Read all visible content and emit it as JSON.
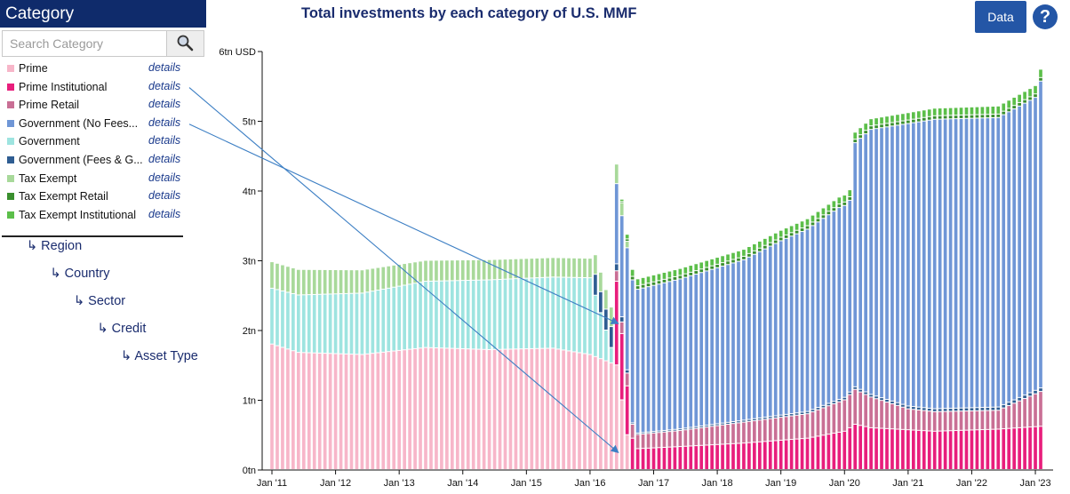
{
  "sidebar": {
    "title": "Category",
    "search_placeholder": "Search Category",
    "details_label": "details",
    "categories": [
      {
        "label": "Prime",
        "color": "#f7b6c9"
      },
      {
        "label": "Prime Institutional",
        "color": "#e81e7c"
      },
      {
        "label": "Prime Retail",
        "color": "#c96f95"
      },
      {
        "label": "Government (No Fees...",
        "color": "#6f96d6"
      },
      {
        "label": "Government",
        "color": "#9ee4e0"
      },
      {
        "label": "Government (Fees & G...",
        "color": "#2f5d92"
      },
      {
        "label": "Tax Exempt",
        "color": "#a8d99a"
      },
      {
        "label": "Tax Exempt Retail",
        "color": "#3a8f2e"
      },
      {
        "label": "Tax Exempt Institutional",
        "color": "#5cbf4a"
      }
    ],
    "hierarchy": [
      "↳ Region",
      "↳ Country",
      "↳ Sector",
      "↳ Credit",
      "↳ Asset Type"
    ]
  },
  "header": {
    "title": "Total investments by each category of U.S. MMF",
    "data_button": "Data",
    "help_icon": "?"
  },
  "chart_data": {
    "type": "bar",
    "stacked": true,
    "title": "Total investments by each category of U.S. MMF",
    "ylabel": "6tn USD",
    "ylim": [
      0,
      6
    ],
    "ytick_labels": [
      "0tn",
      "1tn",
      "2tn",
      "3tn",
      "4tn",
      "5tn",
      "6tn USD"
    ],
    "xtick_labels": [
      "Jan '11",
      "Jan '12",
      "Jan '13",
      "Jan '14",
      "Jan '15",
      "Jan '16",
      "Jan '17",
      "Jan '18",
      "Jan '19",
      "Jan '20",
      "Jan '21",
      "Jan '22",
      "Jan '23"
    ],
    "x_start": "Jan '11",
    "frequency": "monthly",
    "units": "tn USD",
    "series": [
      {
        "name": "Prime",
        "color": "#f7b6c9",
        "keyframes": [
          [
            "2011-01",
            1.8
          ],
          [
            "2011-06",
            1.68
          ],
          [
            "2012-06",
            1.65
          ],
          [
            "2013-06",
            1.75
          ],
          [
            "2014-06",
            1.72
          ],
          [
            "2015-06",
            1.74
          ],
          [
            "2016-01",
            1.65
          ],
          [
            "2016-06",
            1.5
          ],
          [
            "2016-09",
            0
          ],
          [
            "2023-02",
            0
          ]
        ]
      },
      {
        "name": "Prime Institutional",
        "color": "#e81e7c",
        "keyframes": [
          [
            "2011-01",
            0
          ],
          [
            "2016-05",
            0
          ],
          [
            "2016-06",
            1.2
          ],
          [
            "2016-09",
            0.45
          ],
          [
            "2016-10",
            0.3
          ],
          [
            "2017-06",
            0.33
          ],
          [
            "2018-06",
            0.38
          ],
          [
            "2019-06",
            0.45
          ],
          [
            "2020-01",
            0.55
          ],
          [
            "2020-03",
            0.65
          ],
          [
            "2020-06",
            0.6
          ],
          [
            "2021-06",
            0.55
          ],
          [
            "2022-06",
            0.58
          ],
          [
            "2023-02",
            0.62
          ]
        ]
      },
      {
        "name": "Prime Retail",
        "color": "#c96f95",
        "keyframes": [
          [
            "2011-01",
            0
          ],
          [
            "2016-05",
            0
          ],
          [
            "2016-06",
            0.15
          ],
          [
            "2016-09",
            0.2
          ],
          [
            "2017-06",
            0.23
          ],
          [
            "2018-06",
            0.3
          ],
          [
            "2019-06",
            0.35
          ],
          [
            "2020-01",
            0.45
          ],
          [
            "2020-03",
            0.5
          ],
          [
            "2021-01",
            0.3
          ],
          [
            "2021-06",
            0.28
          ],
          [
            "2022-06",
            0.27
          ],
          [
            "2023-02",
            0.5
          ]
        ]
      },
      {
        "name": "Government",
        "color": "#9ee4e0",
        "keyframes": [
          [
            "2011-01",
            0.8
          ],
          [
            "2012-06",
            0.88
          ],
          [
            "2013-06",
            0.95
          ],
          [
            "2014-06",
            1.0
          ],
          [
            "2015-06",
            1.02
          ],
          [
            "2016-01",
            1.1
          ],
          [
            "2016-06",
            0
          ],
          [
            "2023-02",
            0
          ]
        ]
      },
      {
        "name": "Government (Fees & G...",
        "color": "#2f5d92",
        "keyframes": [
          [
            "2011-01",
            0
          ],
          [
            "2016-01",
            0
          ],
          [
            "2016-02",
            0.3
          ],
          [
            "2016-05",
            0.3
          ],
          [
            "2016-06",
            0.1
          ],
          [
            "2016-09",
            0.02
          ],
          [
            "2023-02",
            0.05
          ]
        ]
      },
      {
        "name": "Government (No Fees...",
        "color": "#6f96d6",
        "keyframes": [
          [
            "2011-01",
            0
          ],
          [
            "2016-05",
            0
          ],
          [
            "2016-06",
            1.15
          ],
          [
            "2016-09",
            2.05
          ],
          [
            "2017-06",
            2.15
          ],
          [
            "2018-06",
            2.3
          ],
          [
            "2019-01",
            2.5
          ],
          [
            "2019-12",
            2.75
          ],
          [
            "2020-02",
            2.75
          ],
          [
            "2020-03",
            3.5
          ],
          [
            "2020-06",
            3.8
          ],
          [
            "2021-01",
            4.05
          ],
          [
            "2021-06",
            4.15
          ],
          [
            "2022-01",
            4.15
          ],
          [
            "2022-06",
            4.15
          ],
          [
            "2023-01",
            4.2
          ],
          [
            "2023-02",
            4.4
          ]
        ]
      },
      {
        "name": "Tax Exempt",
        "color": "#a8d99a",
        "keyframes": [
          [
            "2011-01",
            0.38
          ],
          [
            "2013-06",
            0.3
          ],
          [
            "2015-06",
            0.28
          ],
          [
            "2016-06",
            0.28
          ],
          [
            "2016-09",
            0
          ],
          [
            "2023-02",
            0
          ]
        ]
      },
      {
        "name": "Tax Exempt Retail",
        "color": "#3a8f2e",
        "keyframes": [
          [
            "2011-01",
            0
          ],
          [
            "2016-06",
            0
          ],
          [
            "2016-09",
            0.05
          ],
          [
            "2023-02",
            0.05
          ]
        ]
      },
      {
        "name": "Tax Exempt Institutional",
        "color": "#5cbf4a",
        "keyframes": [
          [
            "2011-01",
            0
          ],
          [
            "2016-06",
            0
          ],
          [
            "2016-09",
            0.1
          ],
          [
            "2020-01",
            0.1
          ],
          [
            "2023-02",
            0.12
          ]
        ]
      }
    ],
    "annotations": [
      {
        "from_category": "Prime Institutional",
        "to": [
          "2016-06",
          0.25
        ]
      },
      {
        "from_category": "Government (No Fees...",
        "to": [
          "2016-06",
          2.1
        ]
      }
    ]
  }
}
